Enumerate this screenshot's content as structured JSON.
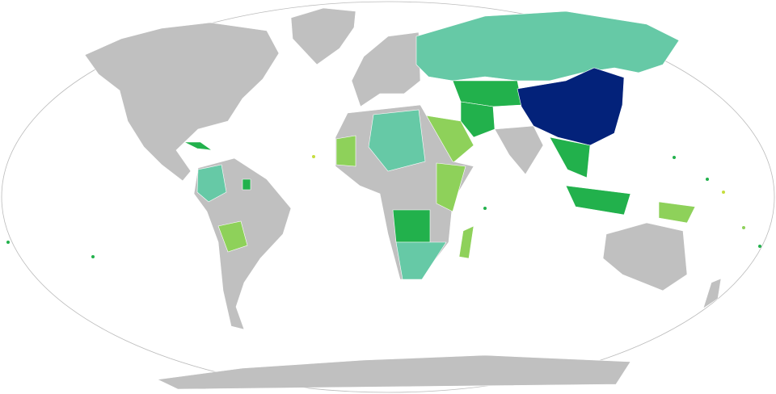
{
  "map": {
    "colors": [
      "#c0c0c0",
      "#03227a",
      "#66c9a6",
      "#22b14c",
      "#8ed15a",
      "#c6dd3e"
    ],
    "ocean": "#ffffff"
  }
}
